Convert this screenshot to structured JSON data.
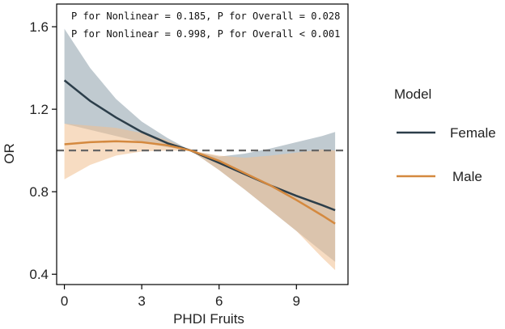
{
  "chart_data": {
    "type": "line",
    "title": "",
    "xlabel": "PHDI Fruits",
    "ylabel": "OR",
    "xlim": [
      -0.3,
      11.0
    ],
    "ylim": [
      0.35,
      1.71
    ],
    "xticks": [
      0,
      3,
      6,
      9
    ],
    "xtick_labels": [
      "0",
      "3",
      "6",
      "9"
    ],
    "yticks": [
      0.4,
      0.8,
      1.2,
      1.6
    ],
    "ytick_labels": [
      "0.4",
      "0.8",
      "1.2",
      "1.6"
    ],
    "reference_line": 1.0,
    "annotations": [
      "P for Nonlinear = 0.185, P for Overall = 0.028",
      "P for Nonlinear = 0.998, P for Overall < 0.001"
    ],
    "legend": {
      "title": "Model",
      "position": "right"
    },
    "x": [
      0,
      1,
      2,
      3,
      4,
      4.9,
      6,
      7,
      8,
      9,
      10,
      10.5
    ],
    "series": [
      {
        "name": "Female",
        "color": "#2c3e4a",
        "band_color": "#8c9eaa",
        "values": [
          1.34,
          1.24,
          1.16,
          1.09,
          1.035,
          1.0,
          0.94,
          0.885,
          0.83,
          0.78,
          0.735,
          0.71
        ],
        "lower": [
          1.13,
          1.1,
          1.07,
          1.04,
          1.015,
          1.0,
          0.905,
          0.81,
          0.71,
          0.61,
          0.51,
          0.46
        ],
        "upper": [
          1.59,
          1.4,
          1.25,
          1.14,
          1.06,
          1.0,
          0.97,
          0.985,
          1.01,
          1.04,
          1.07,
          1.09
        ]
      },
      {
        "name": "Male",
        "color": "#d4893f",
        "band_color": "#f0c08f",
        "values": [
          1.03,
          1.04,
          1.045,
          1.04,
          1.025,
          1.0,
          0.95,
          0.89,
          0.83,
          0.76,
          0.685,
          0.645
        ],
        "lower": [
          0.86,
          0.93,
          0.975,
          0.995,
          1.0,
          1.0,
          0.905,
          0.81,
          0.71,
          0.61,
          0.48,
          0.42
        ],
        "upper": [
          1.13,
          1.12,
          1.11,
          1.085,
          1.05,
          1.0,
          0.975,
          0.965,
          0.975,
          0.99,
          1.005,
          1.0
        ]
      }
    ]
  }
}
